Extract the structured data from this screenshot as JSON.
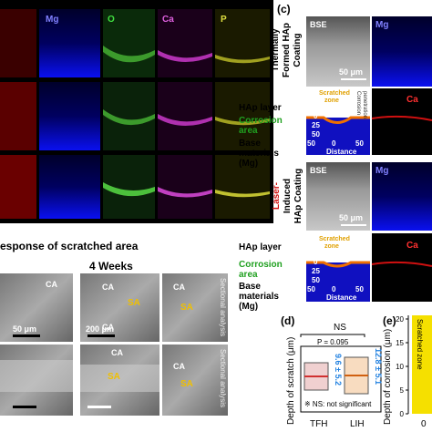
{
  "panel_a": {
    "channels": [
      "Mg",
      "O",
      "Ca",
      "P"
    ]
  },
  "panel_b": {
    "title": "esponse of scratched area",
    "week": "4 Weeks",
    "ca": "CA",
    "sa": "SA",
    "scale_small": "50 μm",
    "scale_large": "200 μm",
    "sectional": "Sectional analysis"
  },
  "panel_c": {
    "label": "(c)",
    "bse": "BSE",
    "mg": "Mg",
    "ca": "Ca",
    "scale": "50 μm",
    "coating_tfh": [
      "Thermally",
      "Formed HAp",
      "Coating"
    ],
    "coating_lih": [
      "Laser-",
      "Induced",
      "HAp Coating"
    ],
    "hap_layer": "HAp layer",
    "corrosion_area": [
      "Corrosion",
      "area"
    ],
    "base": [
      "Base",
      "materials",
      "(Mg)"
    ],
    "scratched_zone": [
      "Scratched",
      "zone"
    ],
    "penetration": [
      "Corrosion",
      "penetration",
      "depth"
    ],
    "distance": "Distance",
    "distance_ticks": [
      50,
      0,
      50
    ],
    "depth_ticks": [
      0,
      25,
      50
    ]
  },
  "panel_d": {
    "label": "(d)",
    "ns": "NS",
    "p_value": "P = 0.095",
    "ylabel": "Depth of scratch (μm)",
    "categories": [
      "TFH",
      "LIH"
    ],
    "stats": [
      "9.6 ± 5.2",
      "12.8 ± 5.1"
    ],
    "note": "※ NS: not significant"
  },
  "panel_e": {
    "label": "(e)",
    "ylabel": "Depth of corrosion (μm)",
    "yticks": [
      0,
      5,
      10,
      15,
      20
    ],
    "category": "0",
    "zone": "Scratched zone"
  }
}
